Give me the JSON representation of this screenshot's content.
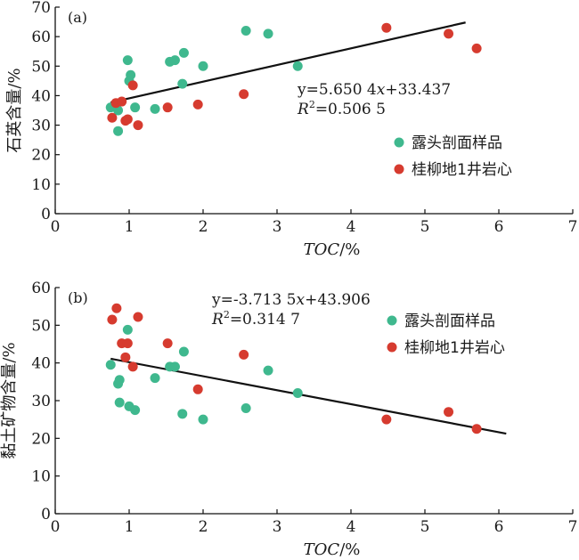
{
  "colors": {
    "outcrop": "#3fb88e",
    "core": "#d63b2f",
    "line": "#111111"
  },
  "chart_data": [
    {
      "type": "scatter",
      "panel_label": "(a)",
      "ylabel": "石英含量/%",
      "xlabel": "TOC/%",
      "xlim": [
        0,
        7
      ],
      "ylim": [
        0,
        70
      ],
      "x_ticks": [
        0,
        1,
        2,
        3,
        4,
        5,
        6,
        7
      ],
      "y_ticks": [
        0,
        10,
        20,
        30,
        40,
        50,
        60,
        70
      ],
      "equation": "y=5.650 4x+33.437",
      "r2": "R2=0.506 5",
      "trendline": {
        "x": [
          0.75,
          5.55
        ]
      },
      "series": [
        {
          "name": "露头剖面样品",
          "color_key": "outcrop",
          "points": [
            [
              0.75,
              36
            ],
            [
              0.85,
              35
            ],
            [
              0.85,
              28
            ],
            [
              0.98,
              52
            ],
            [
              1.0,
              45
            ],
            [
              1.02,
              47
            ],
            [
              1.08,
              36
            ],
            [
              1.35,
              35.5
            ],
            [
              1.55,
              51.5
            ],
            [
              1.62,
              52
            ],
            [
              1.72,
              44
            ],
            [
              1.74,
              54.5
            ],
            [
              2.0,
              50
            ],
            [
              2.58,
              62
            ],
            [
              2.88,
              61
            ],
            [
              3.28,
              50
            ]
          ]
        },
        {
          "name": "桂柳地1井岩心",
          "color_key": "core",
          "points": [
            [
              0.77,
              32.5
            ],
            [
              0.82,
              37.5
            ],
            [
              0.9,
              38
            ],
            [
              0.95,
              31.5
            ],
            [
              0.98,
              32
            ],
            [
              1.05,
              43.5
            ],
            [
              1.12,
              30
            ],
            [
              1.52,
              36
            ],
            [
              1.93,
              37
            ],
            [
              2.55,
              40.5
            ],
            [
              4.48,
              63
            ],
            [
              5.32,
              61
            ],
            [
              5.7,
              56
            ]
          ]
        }
      ]
    },
    {
      "type": "scatter",
      "panel_label": "(b)",
      "ylabel": "黏土矿物含量/%",
      "xlabel": "TOC/%",
      "xlim": [
        0,
        7
      ],
      "ylim": [
        0,
        60
      ],
      "x_ticks": [
        0,
        1,
        2,
        3,
        4,
        5,
        6,
        7
      ],
      "y_ticks": [
        0,
        10,
        20,
        30,
        40,
        50,
        60
      ],
      "equation": "y=-3.713 5x+43.906",
      "r2": "R2=0.314 7",
      "trendline": {
        "x": [
          0.75,
          6.1
        ]
      },
      "series": [
        {
          "name": "露头剖面样品",
          "color_key": "outcrop",
          "points": [
            [
              0.75,
              39.5
            ],
            [
              0.85,
              34.5
            ],
            [
              0.87,
              35.5
            ],
            [
              0.87,
              29.5
            ],
            [
              0.98,
              48.8
            ],
            [
              1.0,
              28.5
            ],
            [
              1.08,
              27.5
            ],
            [
              1.35,
              36
            ],
            [
              1.55,
              39
            ],
            [
              1.62,
              39
            ],
            [
              1.72,
              26.5
            ],
            [
              1.74,
              43
            ],
            [
              2.0,
              25
            ],
            [
              2.58,
              28
            ],
            [
              2.88,
              38
            ],
            [
              3.28,
              32
            ]
          ]
        },
        {
          "name": "桂柳地1井岩心",
          "color_key": "core",
          "points": [
            [
              0.77,
              51.5
            ],
            [
              0.83,
              54.5
            ],
            [
              0.9,
              45.2
            ],
            [
              0.95,
              41.5
            ],
            [
              0.98,
              45.2
            ],
            [
              1.05,
              39
            ],
            [
              1.12,
              52.2
            ],
            [
              1.52,
              45.2
            ],
            [
              1.93,
              33
            ],
            [
              2.55,
              42.2
            ],
            [
              4.48,
              25
            ],
            [
              5.32,
              27
            ],
            [
              5.7,
              22.5
            ]
          ]
        }
      ]
    }
  ]
}
